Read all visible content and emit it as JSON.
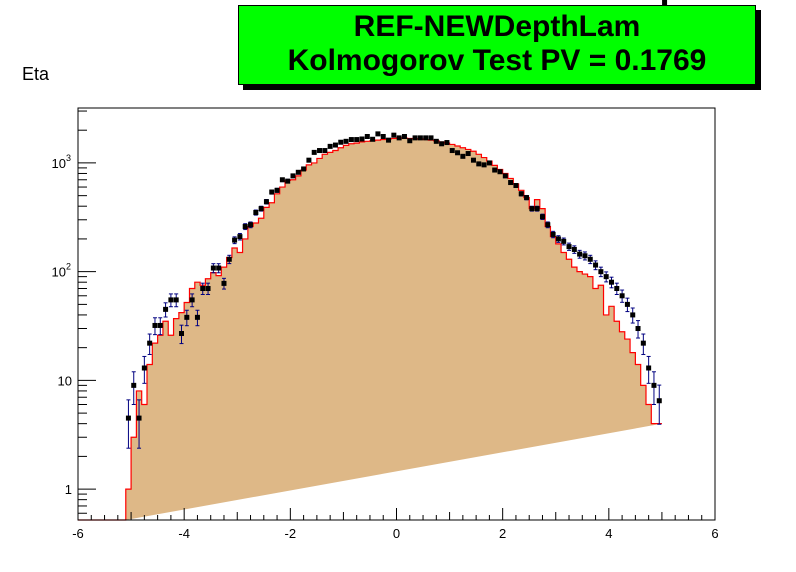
{
  "title": {
    "line1": "REF-NEWDepthLam",
    "line2": "Kolmogorov Test PV = 0.1769"
  },
  "ylabel": "Eta",
  "colors": {
    "title_bg": "#00ff00",
    "hist_fill": "#deb887",
    "hist_line": "#ff0000",
    "marker": "#000000",
    "errorbar": "#000080"
  },
  "chart_data": {
    "type": "histogram",
    "xlim": [
      -6,
      6
    ],
    "ylim": [
      0.52,
      3200
    ],
    "yscale": "log",
    "x_ticks": [
      "-6",
      "-4",
      "-2",
      "0",
      "2",
      "4",
      "6"
    ],
    "x_tick_values": [
      -6,
      -4,
      -2,
      0,
      2,
      4,
      6
    ],
    "y_ticks": [
      {
        "value": 1,
        "label": "1",
        "sup": ""
      },
      {
        "value": 10,
        "label": "10",
        "sup": ""
      },
      {
        "value": 100,
        "label": "10",
        "sup": "2"
      },
      {
        "value": 1000,
        "label": "10",
        "sup": "3"
      }
    ],
    "bin_width": 0.1,
    "series": [
      {
        "name": "REF",
        "style": "filled-histogram",
        "bin_centers": [
          -5.05,
          -4.95,
          -4.85,
          -4.75,
          -4.65,
          -4.55,
          -4.45,
          -4.35,
          -4.25,
          -4.15,
          -4.05,
          -3.95,
          -3.85,
          -3.75,
          -3.65,
          -3.55,
          -3.45,
          -3.35,
          -3.25,
          -3.15,
          -3.05,
          -2.95,
          -2.85,
          -2.75,
          -2.65,
          -2.55,
          -2.45,
          -2.35,
          -2.25,
          -2.15,
          -2.05,
          -1.95,
          -1.85,
          -1.75,
          -1.65,
          -1.55,
          -1.45,
          -1.35,
          -1.25,
          -1.15,
          -1.05,
          -0.95,
          -0.85,
          -0.75,
          -0.65,
          -0.55,
          -0.45,
          -0.35,
          -0.25,
          -0.15,
          -0.05,
          0.05,
          0.15,
          0.25,
          0.35,
          0.45,
          0.55,
          0.65,
          0.75,
          0.85,
          0.95,
          1.05,
          1.15,
          1.25,
          1.35,
          1.45,
          1.55,
          1.65,
          1.75,
          1.85,
          1.95,
          2.05,
          2.15,
          2.25,
          2.35,
          2.45,
          2.55,
          2.65,
          2.75,
          2.85,
          2.95,
          3.05,
          3.15,
          3.25,
          3.35,
          3.45,
          3.55,
          3.65,
          3.75,
          3.85,
          3.95,
          4.05,
          4.15,
          4.25,
          4.35,
          4.45,
          4.55,
          4.65,
          4.75,
          4.85,
          4.95,
          5.05
        ],
        "values": [
          1,
          3,
          8,
          6,
          14,
          22,
          26,
          35,
          26,
          37,
          42,
          52,
          70,
          80,
          75,
          86,
          98,
          92,
          110,
          135,
          165,
          150,
          200,
          260,
          280,
          310,
          390,
          430,
          520,
          600,
          690,
          700,
          760,
          860,
          960,
          1000,
          1100,
          1200,
          1250,
          1300,
          1380,
          1450,
          1500,
          1520,
          1560,
          1580,
          1600,
          1620,
          1640,
          1660,
          1680,
          1700,
          1690,
          1680,
          1670,
          1660,
          1640,
          1620,
          1600,
          1560,
          1520,
          1480,
          1430,
          1380,
          1330,
          1280,
          1200,
          1120,
          1040,
          950,
          870,
          800,
          720,
          640,
          560,
          480,
          380,
          460,
          380,
          260,
          210,
          180,
          150,
          130,
          110,
          100,
          95,
          90,
          70,
          75,
          40,
          48,
          35,
          28,
          24,
          18,
          14,
          9,
          6,
          4,
          4
        ]
      },
      {
        "name": "NEW",
        "style": "markers-with-errors",
        "bin_centers": [
          -5.05,
          -4.95,
          -4.85,
          -4.75,
          -4.65,
          -4.55,
          -4.45,
          -4.35,
          -4.25,
          -4.15,
          -4.05,
          -3.95,
          -3.85,
          -3.75,
          -3.65,
          -3.55,
          -3.45,
          -3.35,
          -3.25,
          -3.15,
          -3.05,
          -2.95,
          -2.85,
          -2.75,
          -2.65,
          -2.55,
          -2.45,
          -2.35,
          -2.25,
          -2.15,
          -2.05,
          -1.95,
          -1.85,
          -1.75,
          -1.65,
          -1.55,
          -1.45,
          -1.35,
          -1.25,
          -1.15,
          -1.05,
          -0.95,
          -0.85,
          -0.75,
          -0.65,
          -0.55,
          -0.45,
          -0.35,
          -0.25,
          -0.15,
          -0.05,
          0.05,
          0.15,
          0.25,
          0.35,
          0.45,
          0.55,
          0.65,
          0.75,
          0.85,
          0.95,
          1.05,
          1.15,
          1.25,
          1.35,
          1.45,
          1.55,
          1.65,
          1.75,
          1.85,
          1.95,
          2.05,
          2.15,
          2.25,
          2.35,
          2.45,
          2.55,
          2.65,
          2.75,
          2.85,
          2.95,
          3.05,
          3.15,
          3.25,
          3.35,
          3.45,
          3.55,
          3.65,
          3.75,
          3.85,
          3.95,
          4.05,
          4.15,
          4.25,
          4.35,
          4.45,
          4.55,
          4.65,
          4.75,
          4.85,
          4.95,
          5.05
        ],
        "values": [
          4.5,
          9,
          4.5,
          13,
          22,
          32,
          32,
          45,
          55,
          55,
          27,
          38,
          55,
          38,
          70,
          70,
          108,
          108,
          78,
          130,
          195,
          210,
          260,
          270,
          350,
          380,
          440,
          540,
          560,
          700,
          680,
          760,
          820,
          880,
          1060,
          1250,
          1300,
          1300,
          1420,
          1460,
          1550,
          1580,
          1640,
          1640,
          1660,
          1750,
          1650,
          1850,
          1750,
          1620,
          1800,
          1700,
          1750,
          1600,
          1700,
          1700,
          1700,
          1700,
          1580,
          1500,
          1540,
          1300,
          1240,
          1150,
          1220,
          1060,
          980,
          960,
          1000,
          860,
          830,
          760,
          660,
          620,
          520,
          480,
          380,
          380,
          320,
          270,
          220,
          200,
          190,
          170,
          160,
          145,
          140,
          130,
          115,
          100,
          90,
          80,
          70,
          60,
          50,
          40,
          30,
          22,
          13,
          9,
          6.5
        ]
      }
    ]
  }
}
